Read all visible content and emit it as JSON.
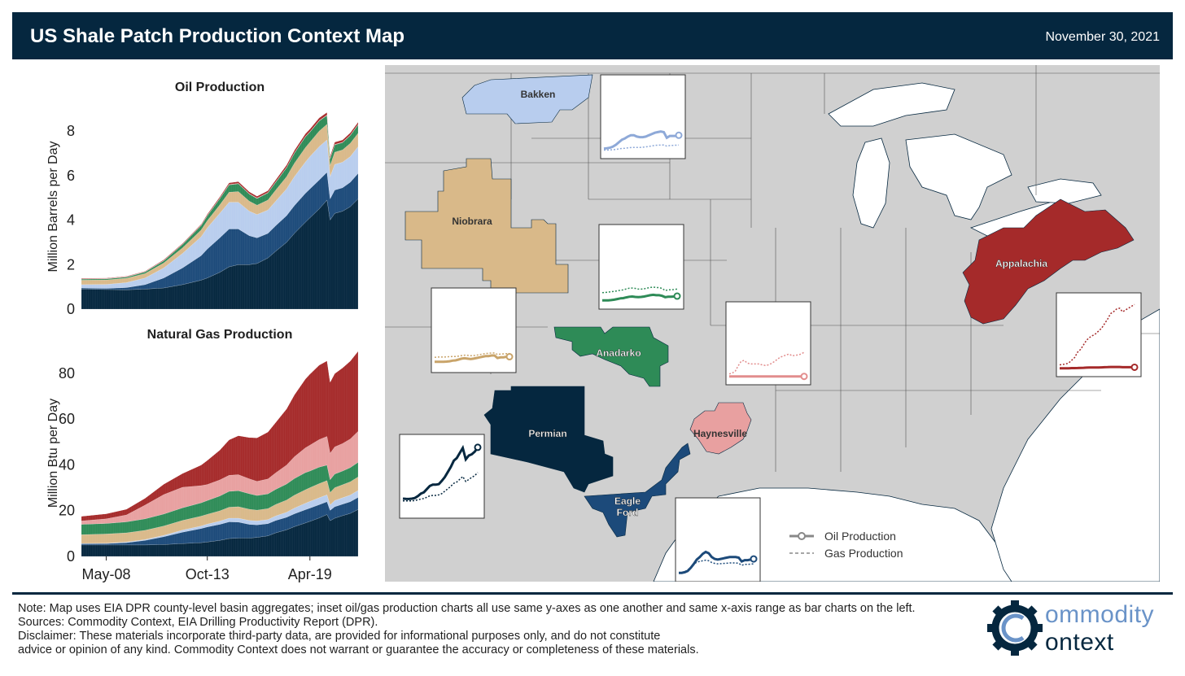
{
  "header": {
    "title": "US Shale Patch Production Context Map",
    "date": "November 30, 2021"
  },
  "colors": {
    "header_bg": "#05273f",
    "Permian": "#05273f",
    "Eagle Ford": "#1c4a7a",
    "Bakken": "#b8cdee",
    "Niobrara": "#d9b989",
    "Anadarko": "#2e8b57",
    "Haynesville": "#e8a0a0",
    "Appalachia": "#a52a2a"
  },
  "chart_data": [
    {
      "type": "area",
      "stacked": true,
      "title": "Oil Production",
      "xlabel": "",
      "ylabel": "Million Barrels per Day",
      "ylim": [
        0,
        9.5
      ],
      "yticks": [
        0,
        2,
        4,
        6,
        8
      ],
      "xticks": [
        "May-08",
        "Oct-13",
        "Apr-19"
      ],
      "x": [
        "2007-01",
        "2008-05",
        "2009-06",
        "2010-06",
        "2011-06",
        "2012-06",
        "2013-06",
        "2013-10",
        "2014-06",
        "2014-12",
        "2015-06",
        "2016-01",
        "2016-06",
        "2017-01",
        "2017-06",
        "2018-01",
        "2018-06",
        "2019-01",
        "2019-04",
        "2019-10",
        "2020-03",
        "2020-05",
        "2020-08",
        "2021-01",
        "2021-06",
        "2021-11"
      ],
      "series": [
        {
          "name": "Permian",
          "values": [
            0.9,
            0.88,
            0.87,
            0.9,
            0.95,
            1.1,
            1.3,
            1.4,
            1.65,
            1.9,
            2.0,
            2.0,
            2.05,
            2.3,
            2.6,
            3.0,
            3.4,
            3.9,
            4.1,
            4.5,
            4.9,
            4.0,
            4.3,
            4.4,
            4.6,
            4.95
          ]
        },
        {
          "name": "Eagle Ford",
          "values": [
            0.05,
            0.05,
            0.1,
            0.2,
            0.45,
            0.75,
            1.1,
            1.3,
            1.55,
            1.7,
            1.6,
            1.3,
            1.15,
            1.1,
            1.15,
            1.2,
            1.25,
            1.3,
            1.3,
            1.3,
            1.25,
            0.95,
            1.05,
            1.05,
            1.1,
            1.15
          ]
        },
        {
          "name": "Bakken",
          "values": [
            0.15,
            0.18,
            0.22,
            0.3,
            0.45,
            0.65,
            0.85,
            0.95,
            1.1,
            1.2,
            1.2,
            1.1,
            1.05,
            1.05,
            1.1,
            1.2,
            1.3,
            1.4,
            1.45,
            1.5,
            1.45,
            1.0,
            1.15,
            1.15,
            1.15,
            1.2
          ]
        },
        {
          "name": "Niobrara",
          "values": [
            0.2,
            0.2,
            0.2,
            0.2,
            0.22,
            0.25,
            0.3,
            0.32,
            0.38,
            0.45,
            0.48,
            0.45,
            0.42,
            0.45,
            0.5,
            0.55,
            0.6,
            0.65,
            0.65,
            0.7,
            0.7,
            0.5,
            0.55,
            0.55,
            0.6,
            0.6
          ]
        },
        {
          "name": "Anadarko",
          "values": [
            0.05,
            0.05,
            0.05,
            0.07,
            0.1,
            0.15,
            0.2,
            0.22,
            0.28,
            0.33,
            0.35,
            0.32,
            0.3,
            0.32,
            0.35,
            0.4,
            0.45,
            0.48,
            0.45,
            0.45,
            0.4,
            0.3,
            0.33,
            0.33,
            0.35,
            0.38
          ]
        },
        {
          "name": "Haynesville",
          "values": [
            0.02,
            0.02,
            0.02,
            0.02,
            0.02,
            0.02,
            0.02,
            0.02,
            0.02,
            0.02,
            0.02,
            0.02,
            0.02,
            0.02,
            0.02,
            0.02,
            0.02,
            0.02,
            0.02,
            0.02,
            0.02,
            0.02,
            0.02,
            0.02,
            0.02,
            0.02
          ]
        },
        {
          "name": "Appalachia",
          "values": [
            0.02,
            0.02,
            0.02,
            0.02,
            0.03,
            0.03,
            0.04,
            0.05,
            0.06,
            0.07,
            0.08,
            0.08,
            0.08,
            0.08,
            0.09,
            0.1,
            0.11,
            0.12,
            0.12,
            0.12,
            0.12,
            0.1,
            0.1,
            0.1,
            0.1,
            0.1
          ]
        }
      ]
    },
    {
      "type": "area",
      "stacked": true,
      "title": "Natural Gas Production",
      "xlabel": "",
      "ylabel": "Million Btu per Day",
      "ylim": [
        0,
        92
      ],
      "yticks": [
        0,
        20,
        40,
        60,
        80
      ],
      "xticks": [
        "May-08",
        "Oct-13",
        "Apr-19"
      ],
      "x": [
        "2007-01",
        "2008-05",
        "2009-06",
        "2010-06",
        "2011-06",
        "2012-06",
        "2013-06",
        "2013-10",
        "2014-06",
        "2014-12",
        "2015-06",
        "2016-01",
        "2016-06",
        "2017-01",
        "2017-06",
        "2018-01",
        "2018-06",
        "2019-01",
        "2019-04",
        "2019-10",
        "2020-03",
        "2020-05",
        "2020-08",
        "2021-01",
        "2021-06",
        "2021-11"
      ],
      "series": [
        {
          "name": "Permian",
          "values": [
            5,
            5,
            5,
            5,
            5.2,
            5.6,
            6,
            6.3,
            7,
            7.8,
            8,
            8,
            8.3,
            9,
            10.3,
            11.6,
            13,
            14.6,
            15.3,
            16.8,
            18.3,
            15.6,
            16.7,
            17.8,
            18.8,
            20.5
          ]
        },
        {
          "name": "Eagle Ford",
          "values": [
            0.5,
            0.6,
            1,
            2,
            3.4,
            5,
            6.2,
            6.6,
            7,
            7.3,
            7,
            6,
            5.5,
            5.3,
            5.4,
            5.5,
            5.6,
            5.8,
            5.8,
            5.8,
            5.6,
            4.5,
            5,
            5,
            5.1,
            5.3
          ]
        },
        {
          "name": "Bakken",
          "values": [
            0.2,
            0.2,
            0.3,
            0.4,
            0.6,
            0.9,
            1.1,
            1.2,
            1.4,
            1.6,
            1.7,
            1.7,
            1.7,
            1.8,
            2,
            2.2,
            2.5,
            2.8,
            2.9,
            3,
            3,
            2.4,
            2.7,
            2.8,
            2.9,
            3
          ]
        },
        {
          "name": "Niobrara",
          "values": [
            3.8,
            4,
            4,
            4,
            4.1,
            4.2,
            4.3,
            4.3,
            4.5,
            4.8,
            5,
            4.9,
            4.7,
            4.8,
            5,
            5.3,
            5.6,
            5.9,
            6,
            6.2,
            6.2,
            5.4,
            5.6,
            5.7,
            5.8,
            5.9
          ]
        },
        {
          "name": "Anadarko",
          "values": [
            4.5,
            4.6,
            4.8,
            5,
            5.2,
            5.5,
            5.8,
            6,
            6.5,
            6.9,
            7,
            6.8,
            6.4,
            6.4,
            6.6,
            7,
            7.3,
            7.5,
            7.3,
            7.2,
            6.8,
            5.6,
            6,
            6,
            6.2,
            6.4
          ]
        },
        {
          "name": "Haynesville",
          "values": [
            1.5,
            2,
            3,
            6,
            8.5,
            9,
            7.5,
            7,
            7,
            7,
            7,
            6.5,
            6.2,
            6.5,
            7.2,
            8.3,
            9.5,
            10.8,
            11.3,
            12,
            12.5,
            11.5,
            11.8,
            12,
            12.5,
            13.5
          ]
        },
        {
          "name": "Appalachia",
          "values": [
            2,
            2.2,
            2.5,
            3,
            4.5,
            6,
            9,
            10.5,
            13,
            15.5,
            17,
            18,
            19,
            20.5,
            22,
            24.5,
            27,
            30,
            31,
            32.5,
            33,
            31,
            32,
            33,
            34,
            35
          ]
        }
      ]
    }
  ],
  "map": {
    "basins": [
      {
        "name": "Bakken",
        "label": "Bakken"
      },
      {
        "name": "Niobrara",
        "label": "Niobrara"
      },
      {
        "name": "Anadarko",
        "label": "Anadarko"
      },
      {
        "name": "Permian",
        "label": "Permian"
      },
      {
        "name": "Eagle Ford",
        "label_line1": "Eagle",
        "label_line2": "Ford"
      },
      {
        "name": "Haynesville",
        "label": "Haynesville"
      },
      {
        "name": "Appalachia",
        "label": "Appalachia"
      }
    ],
    "legend": {
      "oil": "Oil Production",
      "gas": "Gas Production"
    }
  },
  "footer": {
    "note": "Note: Map uses EIA DPR county-level basin aggregates; inset oil/gas production charts all use same y-axes as one another and same x-axis range as bar charts on the left.",
    "sources": "Sources: Commodity Context, EIA Drilling Productivity Report (DPR).",
    "disclaimer1": "Disclaimer: These materials incorporate third-party data, are provided for informational purposes only, and do not constitute",
    "disclaimer2": "advice or opinion of any kind. Commodity Context does not warrant or guarantee the accuracy or completeness of these materials."
  },
  "logo": {
    "word1": "ommodity",
    "word2": "ontext",
    "icon": "gear-c-logo-icon"
  }
}
